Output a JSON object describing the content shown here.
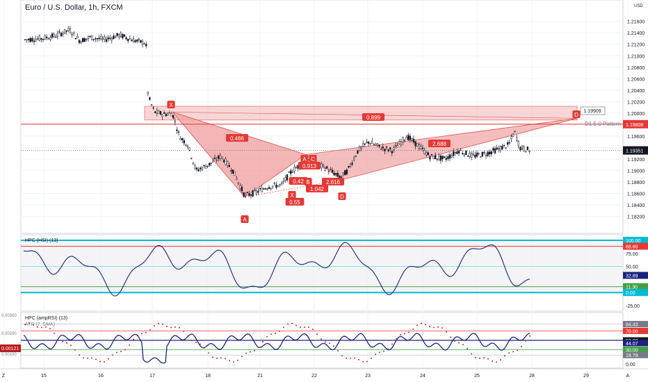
{
  "header": {
    "symbol_title": "Euro / U.S. Dollar, 1h, FXCM",
    "currency": "USD"
  },
  "colors": {
    "candle": "#131722",
    "pattern_fill": "#f0a3a3",
    "pattern_edge": "#e05050",
    "label_red": "#e53935",
    "resistance": "#e53935",
    "osc_line": "#1a237e",
    "band_cyan": "#00bcd4",
    "band_red": "#e53935",
    "band_green": "#43a047",
    "dots_red": "#c62828"
  },
  "chart_data": [
    {
      "type": "candlestick",
      "title": "Euro / U.S. Dollar, 1h, FXCM",
      "ylabel": "USD",
      "ylim": [
        1.181,
        1.2185
      ],
      "y_ticks": [
        "1.21600",
        "1.21400",
        "1.21200",
        "1.21000",
        "1.20800",
        "1.20600",
        "1.20400",
        "1.20200",
        "1.20000",
        "1.19800",
        "1.19600",
        "1.19400",
        "1.19200",
        "1.19000",
        "1.18800",
        "1.18600",
        "1.18400",
        "1.18200"
      ],
      "x_ticks": [
        "Z",
        "15",
        "16",
        "17",
        "18",
        "21",
        "22",
        "23",
        "24",
        "25",
        "28",
        "29",
        "A"
      ],
      "last_price": "1.19351",
      "resistance_level": "1.19808",
      "pattern_name": "D1 5-0 Pattern",
      "pattern_target": "1.19909",
      "pattern_points": [
        {
          "label": "X",
          "x": 0,
          "y": 1.2005
        },
        {
          "label": "A",
          "x": 1,
          "y": 1.1854
        },
        {
          "label": "B",
          "x": 2,
          "y": 1.1928
        },
        {
          "label": "C",
          "x": 3,
          "y": 1.1884
        },
        {
          "label": "D",
          "x": 4,
          "y": 1.199
        }
      ],
      "ratio_labels": [
        "0.899",
        "0.466",
        "0.913",
        "0.42",
        "1.042",
        "2.616",
        "0.55",
        "2.688"
      ],
      "point_labels": [
        "X",
        "A",
        "A",
        "C",
        "B",
        "X",
        "D",
        "D"
      ]
    },
    {
      "type": "line",
      "title": "HPC (HSI) (13)",
      "ylim": [
        -25,
        100
      ],
      "y_ticks": [
        "100.00",
        "88.60",
        "75.00",
        "50.00",
        "32.89",
        "11.30",
        "0.00",
        "-25.00"
      ],
      "levels": [
        100,
        88.6,
        50,
        11.3,
        0
      ],
      "current_value": "32.89"
    },
    {
      "type": "line",
      "title": "HPC (ampRSI) (13)",
      "subtitle": "ATR (7, SMA)",
      "ylim": [
        0,
        100
      ],
      "y_ticks": [
        "84.43",
        "70.00",
        "50.00",
        "44.07",
        "30.00",
        "18.79",
        "0.00"
      ],
      "left_ticks": [
        "0.00300",
        "0.00200",
        "0.00121",
        "0.00100"
      ],
      "current_value": "44.07",
      "atr_value": "0.00121"
    }
  ]
}
